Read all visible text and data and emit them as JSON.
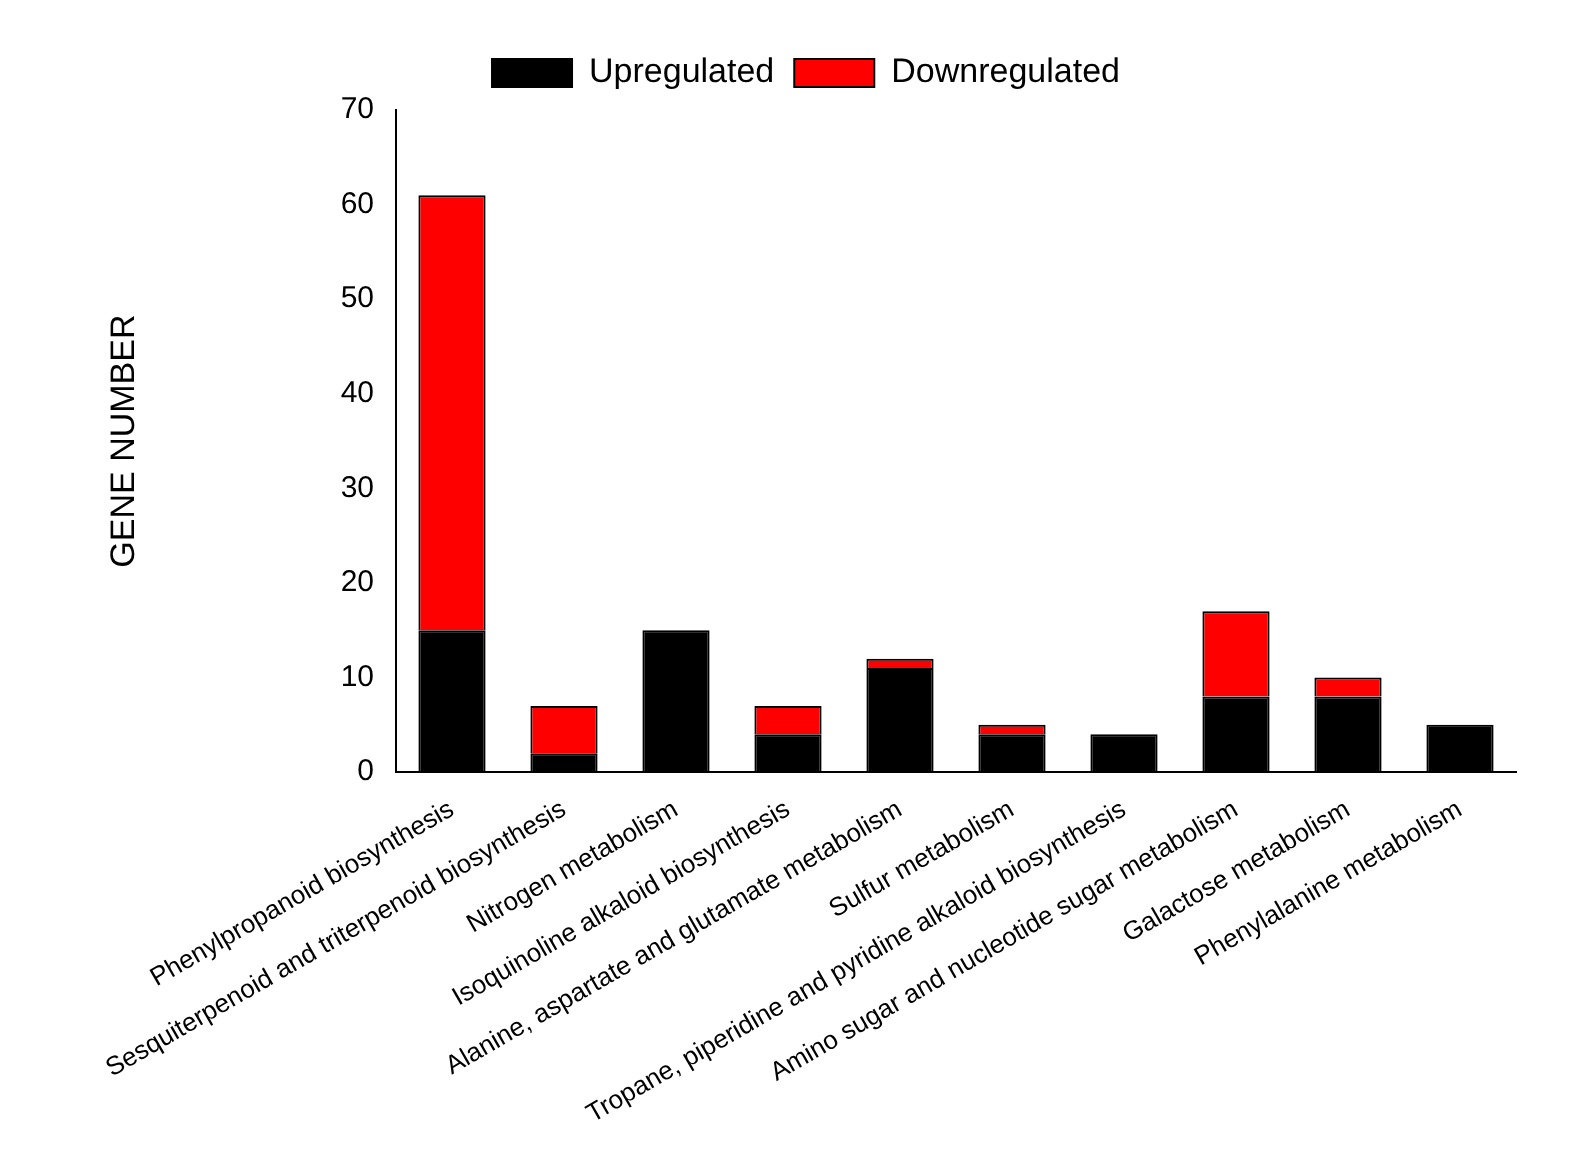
{
  "chart_data": {
    "type": "bar",
    "ylabel": "GENE NUMBER",
    "stacked": true,
    "grid": false,
    "legend": "top",
    "categories": [
      "Phenylpropanoid biosynthesis",
      "Sesquiterpenoid and triterpenoid biosynthesis",
      "Nitrogen metabolism",
      "Isoquinoline alkaloid biosynthesis",
      "Alanine, aspartate and glutamate metabolism",
      "Sulfur metabolism",
      "Tropane, piperidine and pyridine alkaloid biosynthesis",
      "Amino sugar and nucleotide sugar metabolism",
      "Galactose metabolism",
      "Phenylalanine metabolism"
    ],
    "series": [
      {
        "name": "Upregulated",
        "color": "#000000",
        "values": [
          15,
          2,
          15,
          4,
          11,
          4,
          4,
          8,
          8,
          5
        ]
      },
      {
        "name": "Downregulated",
        "color": "#ff0000",
        "values": [
          46,
          5,
          0,
          3,
          1,
          1,
          0,
          9,
          2,
          0
        ]
      }
    ],
    "ylim": [
      0,
      70
    ],
    "yticks": [
      0,
      10,
      20,
      30,
      40,
      50,
      60,
      70
    ]
  }
}
